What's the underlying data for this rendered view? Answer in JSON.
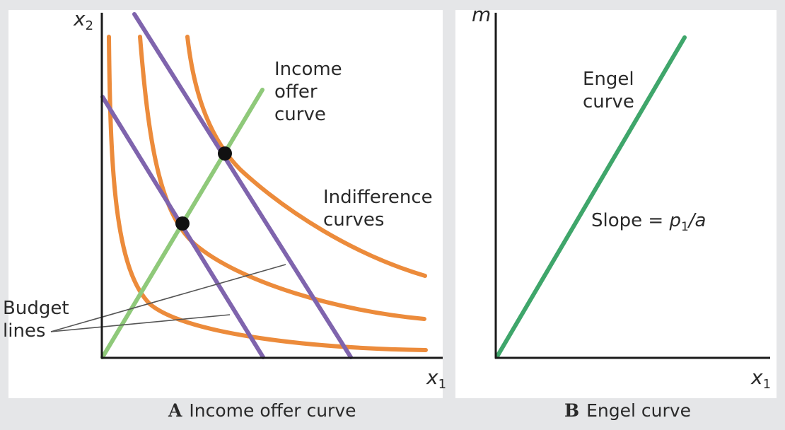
{
  "panel_a": {
    "y_axis_label": "x",
    "y_axis_sub": "2",
    "x_axis_label": "x",
    "x_axis_sub": "1",
    "income_offer_label": [
      "Income",
      "offer",
      "curve"
    ],
    "indifference_label": [
      "Indifference",
      "curves"
    ],
    "budget_label": [
      "Budget",
      "lines"
    ],
    "caption_letter": "A",
    "caption_text": "Income offer curve"
  },
  "panel_b": {
    "y_axis_label": "m",
    "x_axis_label": "x",
    "x_axis_sub": "1",
    "engel_label": [
      "Engel",
      "curve"
    ],
    "slope_prefix": "Slope = ",
    "slope_p": "p",
    "slope_sub": "1",
    "slope_suffix": "/a",
    "caption_letter": "B",
    "caption_text": "Engel curve"
  },
  "colors": {
    "background": "#e5e6e8",
    "panel": "#ffffff",
    "indifference": "#ec8b3b",
    "budget": "#7f64ad",
    "income_offer": "#8fc97a",
    "engel": "#3fa66b",
    "axis": "#1a1a1a"
  }
}
